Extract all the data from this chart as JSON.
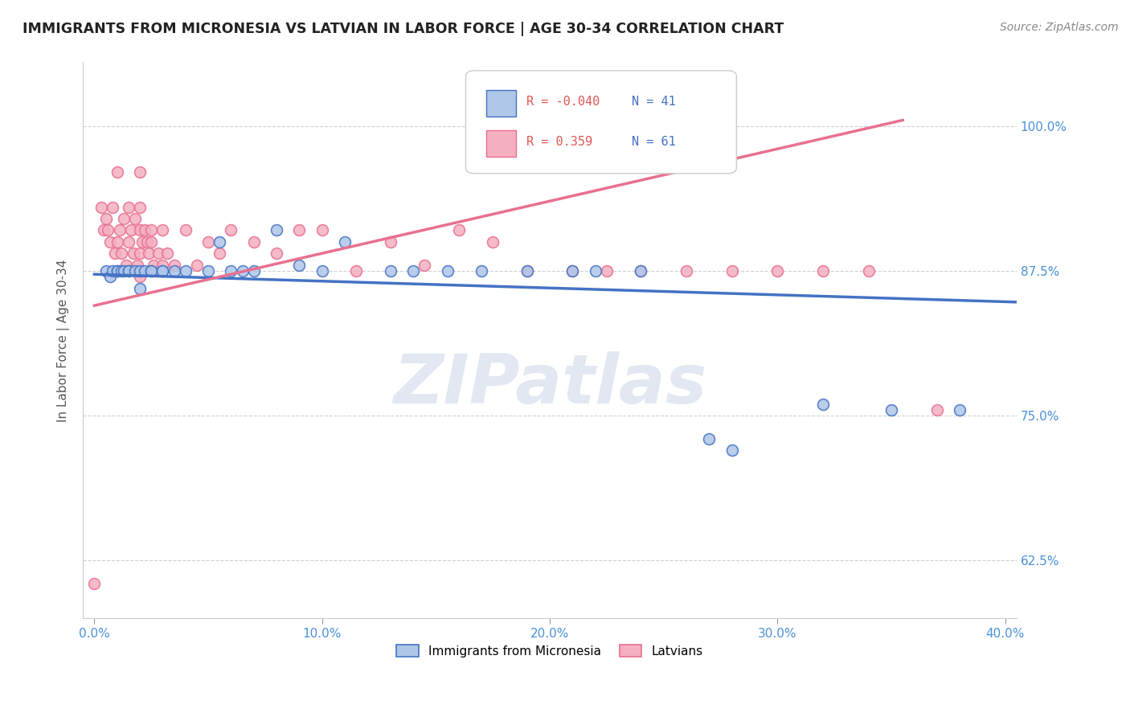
{
  "title": "IMMIGRANTS FROM MICRONESIA VS LATVIAN IN LABOR FORCE | AGE 30-34 CORRELATION CHART",
  "source": "Source: ZipAtlas.com",
  "ylabel": "In Labor Force | Age 30-34",
  "x_tick_labels": [
    "0.0%",
    "10.0%",
    "20.0%",
    "30.0%",
    "40.0%"
  ],
  "x_tick_values": [
    0.0,
    0.1,
    0.2,
    0.3,
    0.4
  ],
  "y_tick_labels": [
    "62.5%",
    "75.0%",
    "87.5%",
    "100.0%"
  ],
  "y_tick_values": [
    0.625,
    0.75,
    0.875,
    1.0
  ],
  "xlim": [
    -0.005,
    0.405
  ],
  "ylim": [
    0.575,
    1.055
  ],
  "blue_R": "-0.040",
  "blue_N": "41",
  "pink_R": "0.359",
  "pink_N": "61",
  "blue_scatter_x": [
    0.005,
    0.007,
    0.008,
    0.01,
    0.01,
    0.012,
    0.013,
    0.015,
    0.015,
    0.018,
    0.02,
    0.02,
    0.022,
    0.025,
    0.025,
    0.03,
    0.03,
    0.035,
    0.04,
    0.05,
    0.055,
    0.06,
    0.065,
    0.07,
    0.08,
    0.09,
    0.1,
    0.11,
    0.13,
    0.14,
    0.155,
    0.17,
    0.19,
    0.21,
    0.22,
    0.24,
    0.27,
    0.28,
    0.32,
    0.35,
    0.38
  ],
  "blue_scatter_y": [
    0.875,
    0.87,
    0.875,
    0.875,
    0.875,
    0.875,
    0.875,
    0.875,
    0.875,
    0.875,
    0.875,
    0.86,
    0.875,
    0.875,
    0.875,
    0.875,
    0.875,
    0.875,
    0.875,
    0.875,
    0.9,
    0.875,
    0.875,
    0.875,
    0.91,
    0.88,
    0.875,
    0.9,
    0.875,
    0.875,
    0.875,
    0.875,
    0.875,
    0.875,
    0.875,
    0.875,
    0.73,
    0.72,
    0.76,
    0.755,
    0.755
  ],
  "pink_scatter_x": [
    0.0,
    0.003,
    0.004,
    0.005,
    0.006,
    0.007,
    0.008,
    0.009,
    0.01,
    0.01,
    0.011,
    0.012,
    0.013,
    0.014,
    0.015,
    0.015,
    0.016,
    0.017,
    0.018,
    0.019,
    0.02,
    0.02,
    0.02,
    0.02,
    0.02,
    0.021,
    0.022,
    0.023,
    0.024,
    0.025,
    0.025,
    0.026,
    0.028,
    0.03,
    0.03,
    0.032,
    0.035,
    0.04,
    0.045,
    0.05,
    0.055,
    0.06,
    0.07,
    0.08,
    0.09,
    0.1,
    0.115,
    0.13,
    0.145,
    0.16,
    0.175,
    0.19,
    0.21,
    0.225,
    0.24,
    0.26,
    0.28,
    0.3,
    0.32,
    0.34,
    0.37
  ],
  "pink_scatter_y": [
    0.605,
    0.93,
    0.91,
    0.92,
    0.91,
    0.9,
    0.93,
    0.89,
    0.96,
    0.9,
    0.91,
    0.89,
    0.92,
    0.88,
    0.93,
    0.9,
    0.91,
    0.89,
    0.92,
    0.88,
    0.96,
    0.93,
    0.91,
    0.89,
    0.87,
    0.9,
    0.91,
    0.9,
    0.89,
    0.91,
    0.9,
    0.88,
    0.89,
    0.91,
    0.88,
    0.89,
    0.88,
    0.91,
    0.88,
    0.9,
    0.89,
    0.91,
    0.9,
    0.89,
    0.91,
    0.91,
    0.875,
    0.9,
    0.88,
    0.91,
    0.9,
    0.875,
    0.875,
    0.875,
    0.875,
    0.875,
    0.875,
    0.875,
    0.875,
    0.875,
    0.755
  ],
  "blue_line_x": [
    0.0,
    0.405
  ],
  "blue_line_y": [
    0.872,
    0.848
  ],
  "pink_line_x": [
    0.0,
    0.355
  ],
  "pink_line_y": [
    0.845,
    1.005
  ],
  "blue_color": "#4472c4",
  "pink_color": "#e87090",
  "blue_scatter_face": "#aec6e8",
  "pink_scatter_face": "#f4afc0",
  "grid_color": "#bbbbbb",
  "watermark_text": "ZIPatlas",
  "bottom_legend_labels": [
    "Immigrants from Micronesia",
    "Latvians"
  ]
}
